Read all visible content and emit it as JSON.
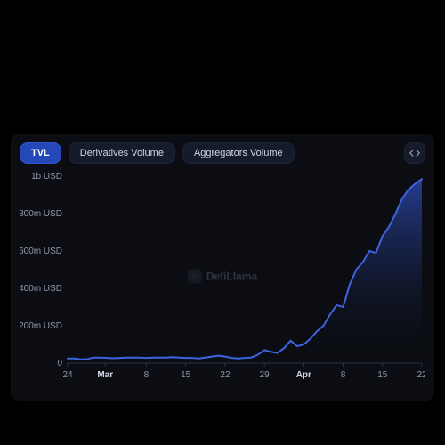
{
  "colors": {
    "page_bg": "#000000",
    "panel_bg": "#0b0d12",
    "tab_bg": "#151b2b",
    "tab_border": "#1c2438",
    "tab_text": "#cfd6e4",
    "tab_active_bg": "#2448b8",
    "tab_active_border": "#2f55cf",
    "tab_active_text": "#ffffff",
    "axis_line": "#2a3244",
    "tick_text": "#8f98ab",
    "line_stroke": "#3e63e0",
    "area_top": "#2b46a8",
    "area_bottom": "#0b0d12"
  },
  "tabs": [
    {
      "label": "TVL",
      "active": true
    },
    {
      "label": "Derivatives Volume",
      "active": false
    },
    {
      "label": "Aggregators Volume",
      "active": false
    }
  ],
  "watermark": "DefiLlama",
  "chart": {
    "type": "area",
    "ylim": [
      0,
      1000
    ],
    "y_ticks": [
      {
        "v": 0,
        "label": "0"
      },
      {
        "v": 200,
        "label": "200m USD"
      },
      {
        "v": 400,
        "label": "400m USD"
      },
      {
        "v": 600,
        "label": "600m USD"
      },
      {
        "v": 800,
        "label": "800m USD"
      },
      {
        "v": 1000,
        "label": "1b USD"
      }
    ],
    "x_ticks": [
      {
        "i": 0,
        "label": "24",
        "bold": false
      },
      {
        "i": 1,
        "label": "Mar",
        "bold": true,
        "offset": -2
      },
      {
        "i": 2,
        "label": "8",
        "bold": false
      },
      {
        "i": 3,
        "label": "15",
        "bold": false
      },
      {
        "i": 4,
        "label": "22",
        "bold": false
      },
      {
        "i": 5,
        "label": "29",
        "bold": false
      },
      {
        "i": 6,
        "label": "Apr",
        "bold": true
      },
      {
        "i": 7,
        "label": "8",
        "bold": false
      },
      {
        "i": 8,
        "label": "15",
        "bold": false
      },
      {
        "i": 9,
        "label": "22",
        "bold": false
      }
    ],
    "x_count": 10,
    "line_width": 2,
    "series": [
      25,
      25,
      20,
      22,
      30,
      30,
      28,
      26,
      28,
      30,
      30,
      30,
      28,
      30,
      30,
      30,
      32,
      30,
      28,
      28,
      25,
      30,
      35,
      40,
      35,
      28,
      25,
      28,
      30,
      45,
      70,
      60,
      55,
      80,
      120,
      90,
      100,
      130,
      170,
      200,
      260,
      310,
      300,
      420,
      500,
      540,
      600,
      590,
      680,
      730,
      800,
      880,
      930,
      960,
      985
    ]
  }
}
